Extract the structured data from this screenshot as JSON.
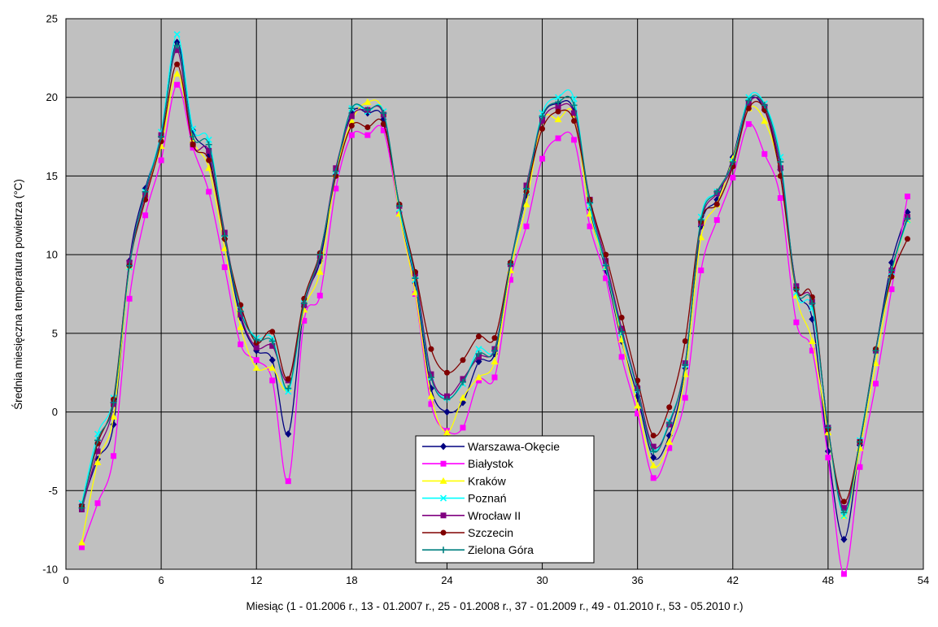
{
  "chart_data": {
    "type": "line",
    "title": "",
    "xlabel": "Miesiąc (1 - 01.2006 r., 13 - 01.2007 r., 25 - 01.2008 r., 37 - 01.2009 r., 49 - 01.2010 r., 53 - 05.2010 r.)",
    "ylabel": "Średnia miesięczna temperatura powietrza (°C)",
    "xlim": [
      0,
      54
    ],
    "ylim": [
      -10,
      25
    ],
    "xticks": [
      "0",
      "6",
      "12",
      "18",
      "24",
      "30",
      "36",
      "42",
      "48",
      "54"
    ],
    "yticks": [
      "-10",
      "-5",
      "0",
      "5",
      "10",
      "15",
      "20",
      "25"
    ],
    "grid": true,
    "plot_background": "#c0c0c0",
    "legend_position": "bottom-center",
    "x": [
      1,
      2,
      3,
      4,
      5,
      6,
      7,
      8,
      9,
      10,
      11,
      12,
      13,
      14,
      15,
      16,
      17,
      18,
      19,
      20,
      21,
      22,
      23,
      24,
      25,
      26,
      27,
      28,
      29,
      30,
      31,
      32,
      33,
      34,
      35,
      36,
      37,
      38,
      39,
      40,
      41,
      42,
      43,
      44,
      45,
      46,
      47,
      48,
      49,
      50,
      51,
      52,
      53
    ],
    "series": [
      {
        "name": "Warszawa-Okęcie",
        "color": "#000080",
        "marker": "diamond",
        "values": [
          -5.9,
          -3.0,
          -0.8,
          9.6,
          14.2,
          17.5,
          23.5,
          17.9,
          16.3,
          11.0,
          6.0,
          3.9,
          3.3,
          -1.4,
          6.7,
          9.6,
          15.1,
          19.0,
          19.0,
          18.6,
          12.7,
          8.2,
          1.5,
          0.0,
          0.6,
          3.2,
          3.7,
          9.4,
          13.8,
          18.7,
          19.6,
          19.1,
          12.9,
          9.0,
          4.5,
          1.0,
          -2.9,
          -1.5,
          2.8,
          11.8,
          13.5,
          16.2,
          19.8,
          19.2,
          15.4,
          7.9,
          5.9,
          -2.5,
          -8.1,
          -2.1,
          3.9,
          9.5,
          12.7
        ]
      },
      {
        "name": "Białystok",
        "color": "#ff00ff",
        "marker": "square",
        "values": [
          -8.6,
          -5.8,
          -2.8,
          7.2,
          12.5,
          16.0,
          20.8,
          16.8,
          14.0,
          9.2,
          4.3,
          3.3,
          2.0,
          -4.4,
          5.8,
          7.4,
          14.2,
          17.6,
          17.6,
          17.9,
          12.6,
          7.5,
          0.5,
          -1.2,
          -1.0,
          2.0,
          2.2,
          8.4,
          11.8,
          16.1,
          17.4,
          17.3,
          11.8,
          8.5,
          3.5,
          -0.1,
          -4.2,
          -2.3,
          0.9,
          9.0,
          12.2,
          14.9,
          18.3,
          16.4,
          13.6,
          5.7,
          3.9,
          -2.9,
          -10.3,
          -3.5,
          1.8,
          7.8,
          13.7
        ]
      },
      {
        "name": "Kraków",
        "color": "#ffff00",
        "marker": "triangle",
        "values": [
          -8.3,
          -3.2,
          -0.3,
          9.2,
          13.9,
          16.9,
          21.5,
          17.3,
          15.5,
          10.4,
          5.4,
          2.8,
          2.8,
          1.5,
          6.5,
          8.9,
          15.1,
          18.5,
          19.7,
          19.0,
          12.6,
          7.6,
          1.0,
          -1.3,
          0.9,
          2.2,
          3.2,
          9.0,
          13.2,
          18.5,
          18.6,
          18.9,
          12.6,
          9.2,
          4.6,
          0.4,
          -3.4,
          -1.9,
          2.4,
          11.1,
          13.2,
          16.1,
          19.3,
          18.5,
          15.1,
          7.4,
          4.5,
          -1.3,
          -6.6,
          -2.3,
          3.1,
          8.7,
          12.2
        ]
      },
      {
        "name": "Poznań",
        "color": "#00ffff",
        "marker": "cross",
        "values": [
          -5.8,
          -1.4,
          0.9,
          9.2,
          14.0,
          17.8,
          24.0,
          18.0,
          17.3,
          11.3,
          6.5,
          4.7,
          4.7,
          1.3,
          6.9,
          10.0,
          15.3,
          19.3,
          19.1,
          19.1,
          12.9,
          8.4,
          2.2,
          0.9,
          1.8,
          4.0,
          4.0,
          9.4,
          14.0,
          19.0,
          20.0,
          19.9,
          13.1,
          9.2,
          5.0,
          1.4,
          -2.4,
          -0.6,
          3.0,
          12.4,
          14.0,
          15.9,
          20.0,
          19.6,
          16.2,
          7.6,
          6.6,
          -1.0,
          -6.6,
          -1.8,
          3.9,
          8.9,
          12.2
        ]
      },
      {
        "name": "Wrocław II",
        "color": "#800080",
        "marker": "square",
        "values": [
          -6.2,
          -2.5,
          0.5,
          9.5,
          13.8,
          17.6,
          23.0,
          17.0,
          16.6,
          11.4,
          6.2,
          4.1,
          4.2,
          2.0,
          6.8,
          9.9,
          15.5,
          18.8,
          19.2,
          18.9,
          13.1,
          8.8,
          2.4,
          1.0,
          2.1,
          3.5,
          4.0,
          9.4,
          14.4,
          18.5,
          19.4,
          19.0,
          13.5,
          9.6,
          5.3,
          1.5,
          -2.2,
          -0.8,
          3.1,
          12.0,
          13.9,
          15.7,
          19.6,
          19.4,
          15.5,
          8.0,
          7.0,
          -1.0,
          -6.1,
          -1.9,
          3.9,
          9.0,
          12.4
        ]
      },
      {
        "name": "Szczecin",
        "color": "#800000",
        "marker": "circle",
        "values": [
          -6.0,
          -2.0,
          0.8,
          9.3,
          13.5,
          17.2,
          22.1,
          17.0,
          16.0,
          11.0,
          6.8,
          4.4,
          5.1,
          2.1,
          7.2,
          10.1,
          15.0,
          18.2,
          18.1,
          18.3,
          13.2,
          8.9,
          4.0,
          2.5,
          3.3,
          4.8,
          4.7,
          9.5,
          14.0,
          18.0,
          19.1,
          18.5,
          13.5,
          10.0,
          6.0,
          2.0,
          -1.5,
          0.3,
          4.5,
          12.1,
          13.2,
          15.6,
          19.3,
          19.2,
          15.0,
          7.8,
          7.3,
          -1.1,
          -5.7,
          -1.9,
          4.0,
          8.6,
          11.0
        ]
      },
      {
        "name": "Zielona Góra",
        "color": "#008080",
        "marker": "plus",
        "values": [
          -6.1,
          -1.8,
          0.6,
          9.3,
          14.0,
          17.5,
          23.3,
          17.5,
          17.0,
          11.2,
          6.4,
          4.6,
          4.5,
          1.5,
          6.9,
          10.0,
          15.3,
          19.3,
          19.2,
          19.0,
          13.1,
          8.5,
          2.2,
          0.8,
          1.9,
          3.7,
          3.9,
          9.4,
          14.2,
          18.8,
          19.7,
          19.5,
          13.3,
          9.3,
          5.1,
          1.4,
          -2.5,
          -0.7,
          3.0,
          12.2,
          14.0,
          15.9,
          19.8,
          19.5,
          15.9,
          7.8,
          6.9,
          -1.0,
          -6.4,
          -1.9,
          3.9,
          9.0,
          12.3
        ]
      }
    ]
  }
}
